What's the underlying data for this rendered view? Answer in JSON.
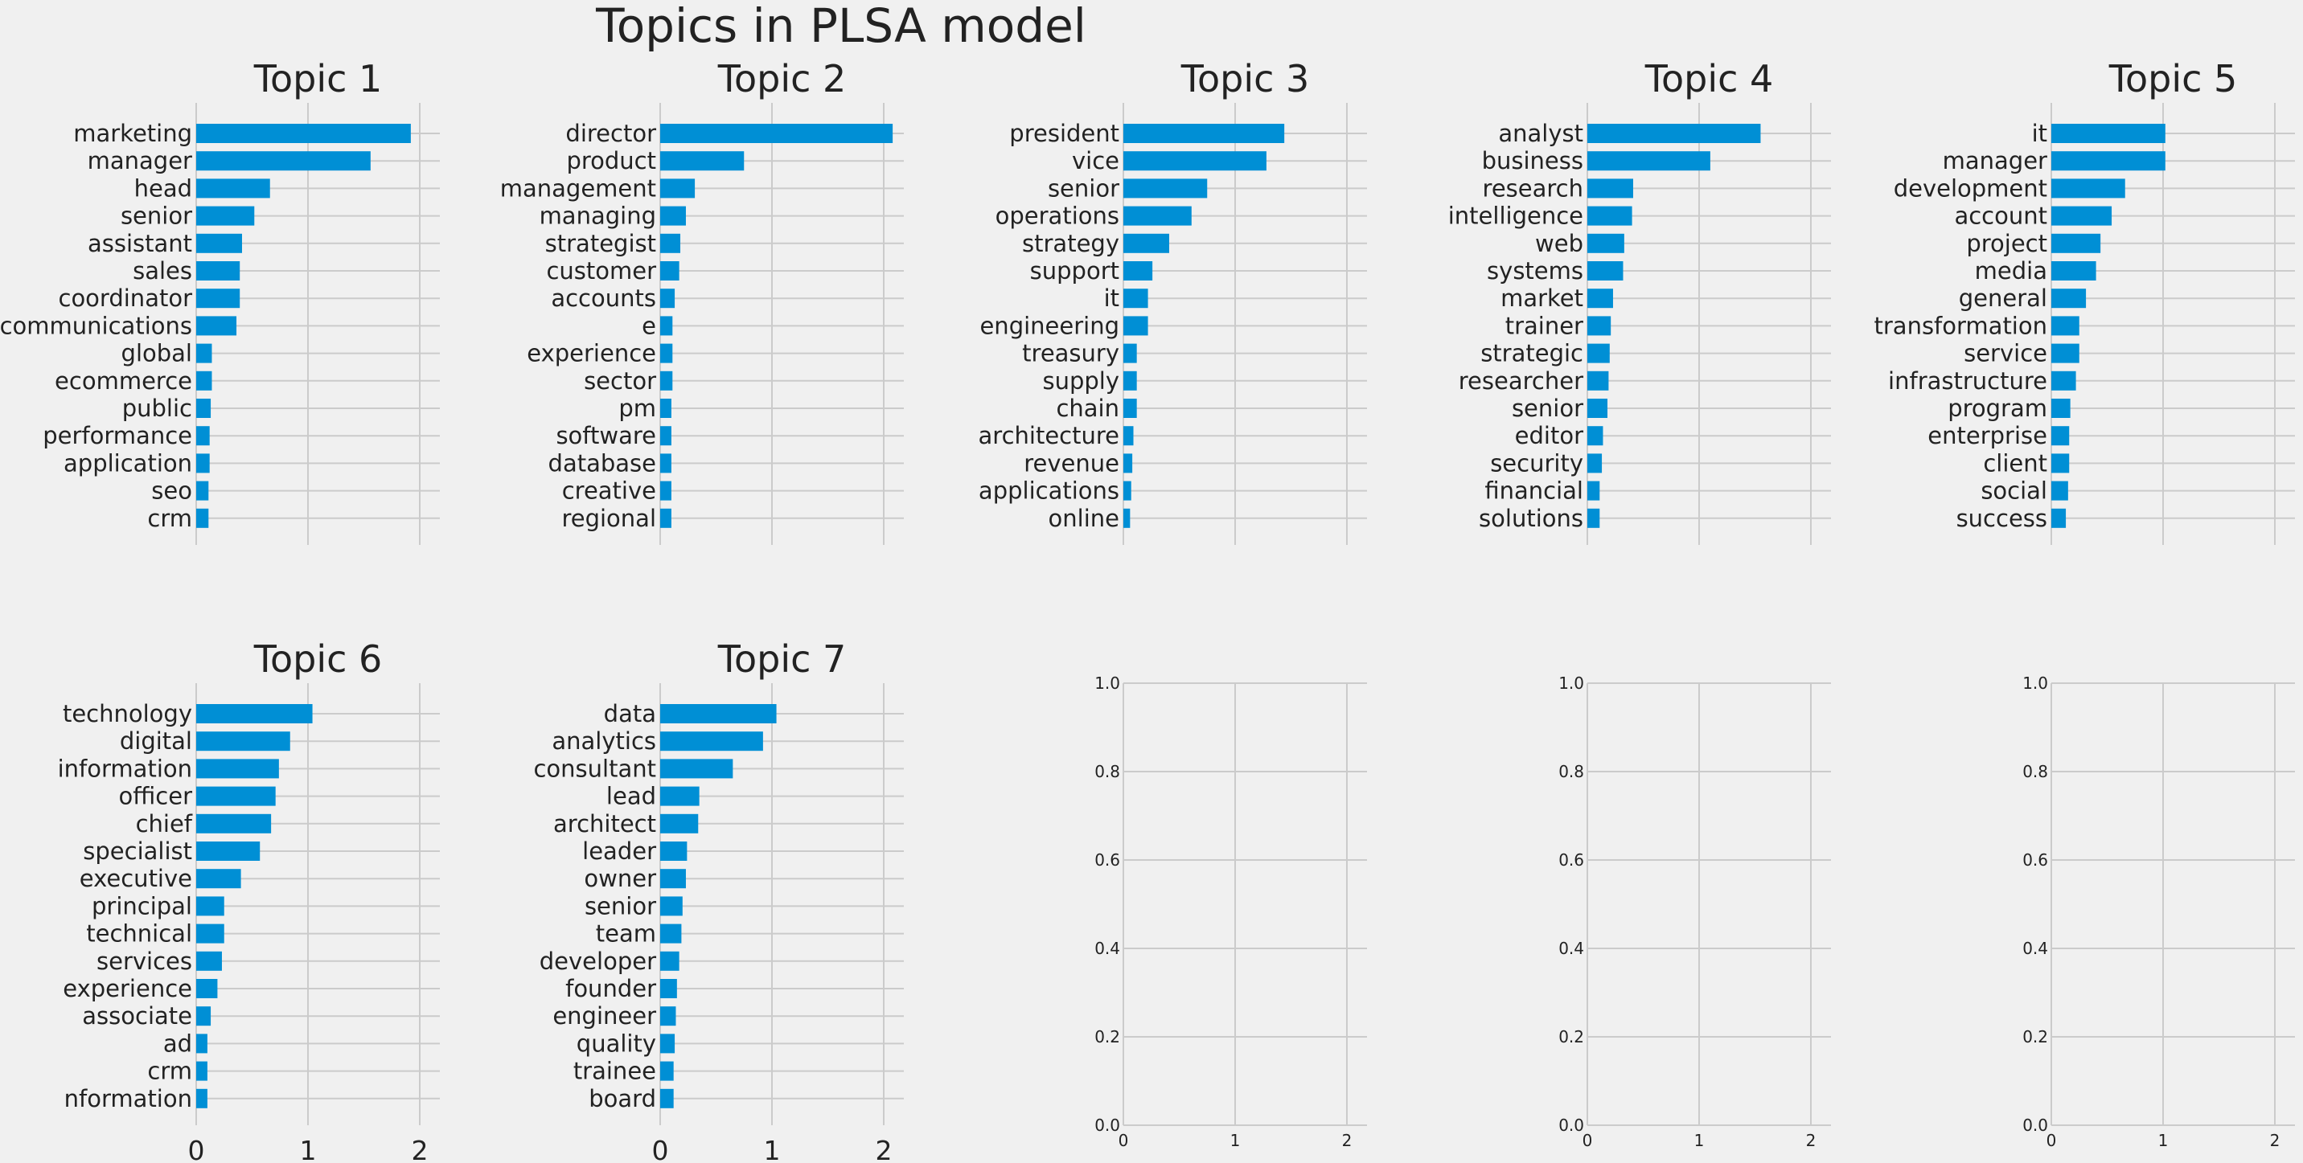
{
  "figure": {
    "title": "Topics in PLSA model",
    "background": "#f0f0f0",
    "bar_color": "#008fd5"
  },
  "chart_data": [
    {
      "type": "bar",
      "orientation": "horizontal",
      "title": "Topic 1",
      "categories": [
        "marketing",
        "manager",
        "head",
        "senior",
        "assistant",
        "sales",
        "coordinator",
        "communications",
        "global",
        "ecommerce",
        "public",
        "performance",
        "application",
        "seo",
        "crm"
      ],
      "values": [
        1.92,
        1.56,
        0.66,
        0.52,
        0.41,
        0.39,
        0.39,
        0.36,
        0.14,
        0.14,
        0.13,
        0.12,
        0.12,
        0.11,
        0.11
      ],
      "xlim": [
        0,
        2.2
      ],
      "xticks": [
        0,
        1,
        2
      ],
      "xlabel": "",
      "ylabel": "",
      "grid": true
    },
    {
      "type": "bar",
      "orientation": "horizontal",
      "title": "Topic 2",
      "categories": [
        "director",
        "product",
        "management",
        "managing",
        "strategist",
        "customer",
        "accounts",
        "e",
        "experience",
        "sector",
        "pm",
        "software",
        "database",
        "creative",
        "regional"
      ],
      "values": [
        2.08,
        0.75,
        0.31,
        0.23,
        0.18,
        0.17,
        0.13,
        0.11,
        0.11,
        0.11,
        0.1,
        0.1,
        0.1,
        0.1,
        0.1
      ],
      "xlim": [
        0,
        2.2
      ],
      "xticks": [
        0,
        1,
        2
      ],
      "xlabel": "",
      "ylabel": "",
      "grid": true
    },
    {
      "type": "bar",
      "orientation": "horizontal",
      "title": "Topic 3",
      "categories": [
        "president",
        "vice",
        "senior",
        "operations",
        "strategy",
        "support",
        "it",
        "engineering",
        "treasury",
        "supply",
        "chain",
        "architecture",
        "revenue",
        "applications",
        "online"
      ],
      "values": [
        1.44,
        1.28,
        0.75,
        0.61,
        0.41,
        0.26,
        0.22,
        0.22,
        0.12,
        0.12,
        0.12,
        0.09,
        0.08,
        0.07,
        0.06
      ],
      "xlim": [
        0,
        2.2
      ],
      "xticks": [
        0,
        1,
        2
      ],
      "xlabel": "",
      "ylabel": "",
      "grid": true
    },
    {
      "type": "bar",
      "orientation": "horizontal",
      "title": "Topic 4",
      "categories": [
        "analyst",
        "business",
        "research",
        "intelligence",
        "web",
        "systems",
        "market",
        "trainer",
        "strategic",
        "researcher",
        "senior",
        "editor",
        "security",
        "financial",
        "solutions"
      ],
      "values": [
        1.55,
        1.1,
        0.41,
        0.4,
        0.33,
        0.32,
        0.23,
        0.21,
        0.2,
        0.19,
        0.18,
        0.14,
        0.13,
        0.11,
        0.11
      ],
      "xlim": [
        0,
        2.2
      ],
      "xticks": [
        0,
        1,
        2
      ],
      "xlabel": "",
      "ylabel": "",
      "grid": true
    },
    {
      "type": "bar",
      "orientation": "horizontal",
      "title": "Topic 5",
      "categories": [
        "it",
        "manager",
        "development",
        "account",
        "project",
        "media",
        "general",
        "transformation",
        "service",
        "infrastructure",
        "program",
        "enterprise",
        "client",
        "social",
        "success"
      ],
      "values": [
        1.02,
        1.02,
        0.66,
        0.54,
        0.44,
        0.4,
        0.31,
        0.25,
        0.25,
        0.22,
        0.17,
        0.16,
        0.16,
        0.15,
        0.13
      ],
      "xlim": [
        0,
        2.2
      ],
      "xticks": [
        0,
        1,
        2
      ],
      "xlabel": "",
      "ylabel": "",
      "grid": true
    },
    {
      "type": "bar",
      "orientation": "horizontal",
      "title": "Topic 6",
      "categories": [
        "technology",
        "digital",
        "information",
        "officer",
        "chief",
        "specialist",
        "executive",
        "principal",
        "technical",
        "services",
        "experience",
        "associate",
        "ad",
        "crm",
        "nformation"
      ],
      "values": [
        1.04,
        0.84,
        0.74,
        0.71,
        0.67,
        0.57,
        0.4,
        0.25,
        0.25,
        0.23,
        0.19,
        0.13,
        0.1,
        0.1,
        0.1
      ],
      "xlim": [
        0,
        2.2
      ],
      "xticks": [
        0,
        1,
        2
      ],
      "xlabel": "",
      "ylabel": "",
      "grid": true
    },
    {
      "type": "bar",
      "orientation": "horizontal",
      "title": "Topic 7",
      "categories": [
        "data",
        "analytics",
        "consultant",
        "lead",
        "architect",
        "leader",
        "owner",
        "senior",
        "team",
        "developer",
        "founder",
        "engineer",
        "quality",
        "trainee",
        "board"
      ],
      "values": [
        1.04,
        0.92,
        0.65,
        0.35,
        0.34,
        0.24,
        0.23,
        0.2,
        0.19,
        0.17,
        0.15,
        0.14,
        0.13,
        0.12,
        0.12
      ],
      "xlim": [
        0,
        2.2
      ],
      "xticks": [
        0,
        1,
        2
      ],
      "xlabel": "",
      "ylabel": "",
      "grid": true
    },
    {
      "type": "bar",
      "title": "",
      "categories": [],
      "values": [],
      "xlim": [
        0,
        2.2
      ],
      "ylim": [
        0,
        1
      ],
      "xticks": [
        0,
        1,
        2
      ],
      "yticks": [
        0.0,
        0.2,
        0.4,
        0.6,
        0.8,
        1.0
      ],
      "grid": true,
      "empty": true
    },
    {
      "type": "bar",
      "title": "",
      "categories": [],
      "values": [],
      "xlim": [
        0,
        2.2
      ],
      "ylim": [
        0,
        1
      ],
      "xticks": [
        0,
        1,
        2
      ],
      "yticks": [
        0.0,
        0.2,
        0.4,
        0.6,
        0.8,
        1.0
      ],
      "grid": true,
      "empty": true
    },
    {
      "type": "bar",
      "title": "",
      "categories": [],
      "values": [],
      "xlim": [
        0,
        2.2
      ],
      "ylim": [
        0,
        1
      ],
      "xticks": [
        0,
        1,
        2
      ],
      "yticks": [
        0.0,
        0.2,
        0.4,
        0.6,
        0.8,
        1.0
      ],
      "grid": true,
      "empty": true
    }
  ]
}
